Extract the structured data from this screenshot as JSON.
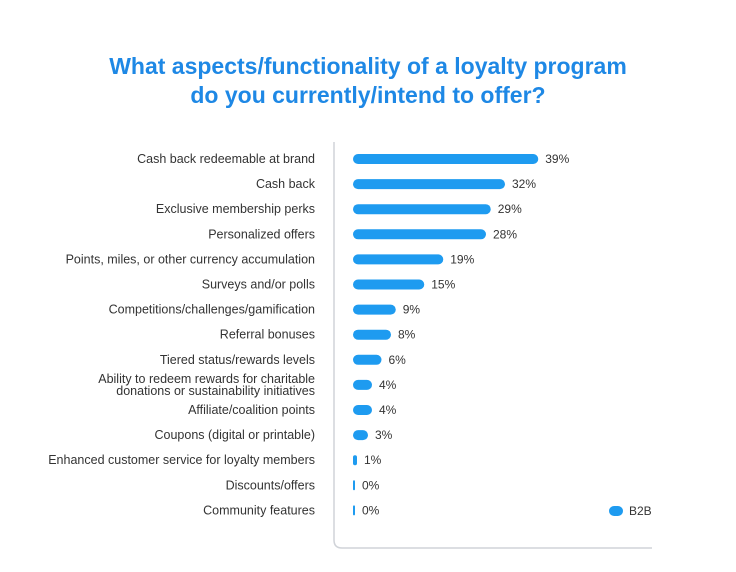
{
  "title_line1": "What aspects/functionality of a loyalty program",
  "title_line2": "do you currently/intend to offer?",
  "colors": {
    "bar": "#1e9bf0",
    "title": "#1e88e5",
    "axis": "#d0d3d8"
  },
  "chart_data": {
    "type": "bar",
    "orientation": "horizontal",
    "title": "What aspects/functionality of a loyalty program do you currently/intend to offer?",
    "categories": [
      [
        "Cash back redeemable at brand"
      ],
      [
        "Cash back"
      ],
      [
        "Exclusive membership perks"
      ],
      [
        "Personalized offers"
      ],
      [
        "Points, miles, or other currency accumulation"
      ],
      [
        "Surveys and/or polls"
      ],
      [
        "Competitions/challenges/gamification"
      ],
      [
        "Referral bonuses"
      ],
      [
        "Tiered status/rewards levels"
      ],
      [
        "Ability to redeem rewards for charitable",
        "donations or sustainability initiatives"
      ],
      [
        "Affiliate/coalition points"
      ],
      [
        "Coupons (digital or printable)"
      ],
      [
        "Enhanced customer service for loyalty members"
      ],
      [
        "Discounts/offers"
      ],
      [
        "Community features"
      ]
    ],
    "series": [
      {
        "name": "B2B",
        "values": [
          39,
          32,
          29,
          28,
          19,
          15,
          9,
          8,
          6,
          4,
          4,
          3,
          1,
          0,
          0
        ]
      }
    ],
    "value_suffix": "%",
    "xlim": [
      0,
      40
    ],
    "legend": "bottom-right",
    "xlabel": "",
    "ylabel": ""
  }
}
